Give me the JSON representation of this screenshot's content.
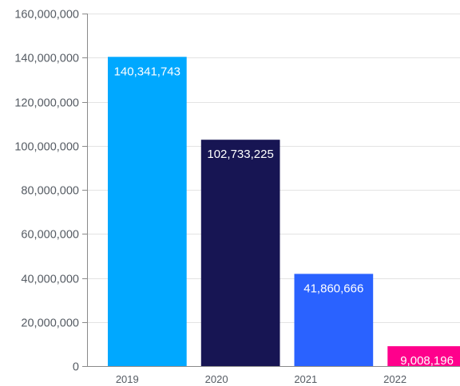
{
  "chart_data": {
    "type": "bar",
    "title": "",
    "xlabel": "",
    "ylabel": "",
    "categories": [
      "2019",
      "2020",
      "2021",
      "2022"
    ],
    "values": [
      140341743,
      102733225,
      41860666,
      9008196
    ],
    "value_labels": [
      "140,341,743",
      "102,733,225",
      "41,860,666",
      "9,008,196"
    ],
    "colors": [
      "#00a8ff",
      "#171553",
      "#2a62ff",
      "#ff008c"
    ],
    "ylim": [
      0,
      160000000
    ],
    "y_ticks": [
      0,
      20000000,
      40000000,
      60000000,
      80000000,
      100000000,
      120000000,
      140000000,
      160000000
    ],
    "y_tick_labels": [
      "0",
      "20,000,000",
      "40,000,000",
      "60,000,000",
      "80,000,000",
      "100,000,000",
      "120,000,000",
      "140,000,000",
      "160,000,000"
    ],
    "grid": true,
    "legend": "none"
  }
}
